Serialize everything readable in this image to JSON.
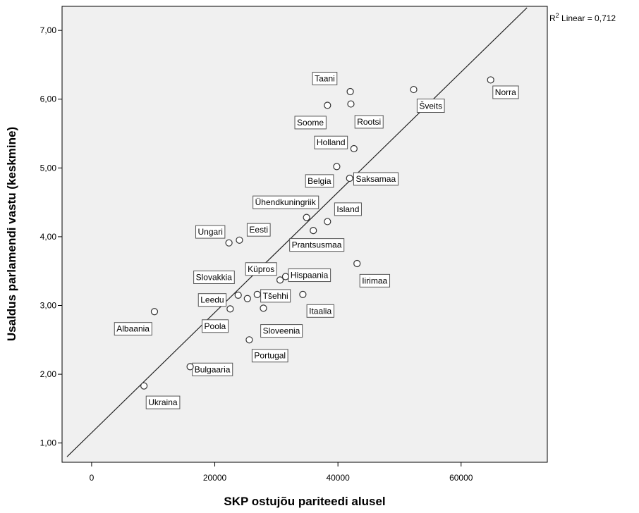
{
  "chart_data": {
    "type": "scatter",
    "xlabel": "SKP ostujõu pariteedi alusel",
    "ylabel": "Usaldus parlamendi vastu (keskmine)",
    "xlim": [
      -4800,
      74000
    ],
    "ylim": [
      0.72,
      7.35
    ],
    "xticks": [
      0,
      20000,
      40000,
      60000
    ],
    "xtick_labels": [
      "0",
      "20000",
      "40000",
      "60000"
    ],
    "yticks": [
      1,
      2,
      3,
      4,
      5,
      6,
      7
    ],
    "ytick_labels": [
      "1,00",
      "2,00",
      "3,00",
      "4,00",
      "5,00",
      "6,00",
      "7,00"
    ],
    "grid": false,
    "fit_line": {
      "label_prefix": "R",
      "label_sup": "2",
      "label_rest": " Linear = 0,712",
      "points": [
        [
          -4000,
          0.8
        ],
        [
          70700,
          7.33
        ]
      ]
    },
    "points": [
      {
        "name": "Norra",
        "x": 64800,
        "y": 6.28,
        "lx": 65500,
        "ly": 6.1,
        "anchor": "start"
      },
      {
        "name": "Šveits",
        "x": 52300,
        "y": 6.14,
        "lx": 53200,
        "ly": 5.9,
        "anchor": "start"
      },
      {
        "name": "Taani",
        "x": 42000,
        "y": 6.11,
        "lx": 39500,
        "ly": 6.3,
        "anchor": "end"
      },
      {
        "name": "Rootsi",
        "x": 42100,
        "y": 5.93,
        "lx": 43100,
        "ly": 5.67,
        "anchor": "start"
      },
      {
        "name": "Soome",
        "x": 38300,
        "y": 5.91,
        "lx": 37700,
        "ly": 5.66,
        "anchor": "end"
      },
      {
        "name": "Holland",
        "x": 42600,
        "y": 5.28,
        "lx": 41200,
        "ly": 5.37,
        "anchor": "end"
      },
      {
        "name": "Belgia",
        "x": 39800,
        "y": 5.02,
        "lx": 38900,
        "ly": 4.81,
        "anchor": "end"
      },
      {
        "name": "Saksamaa",
        "x": 41900,
        "y": 4.85,
        "lx": 42900,
        "ly": 4.84,
        "anchor": "start"
      },
      {
        "name": "Island",
        "x": 38300,
        "y": 4.22,
        "lx": 39800,
        "ly": 4.4,
        "anchor": "start"
      },
      {
        "name": "Ühendkuningriik",
        "x": 34900,
        "y": 4.28,
        "lx": 36400,
        "ly": 4.5,
        "anchor": "end"
      },
      {
        "name": "Prantsusmaa",
        "x": 36000,
        "y": 4.09,
        "lx": 40600,
        "ly": 3.88,
        "anchor": "end"
      },
      {
        "name": "Eesti",
        "x": 24000,
        "y": 3.95,
        "lx": 25600,
        "ly": 4.1,
        "anchor": "start"
      },
      {
        "name": "Ungari",
        "x": 22300,
        "y": 3.91,
        "lx": 21300,
        "ly": 4.07,
        "anchor": "end"
      },
      {
        "name": "Iirimaa",
        "x": 43100,
        "y": 3.61,
        "lx": 43900,
        "ly": 3.36,
        "anchor": "start"
      },
      {
        "name": "Hispaania",
        "x": 31500,
        "y": 3.42,
        "lx": 32300,
        "ly": 3.44,
        "anchor": "start"
      },
      {
        "name": "Küpros",
        "x": 30600,
        "y": 3.37,
        "lx": 29700,
        "ly": 3.53,
        "anchor": "end"
      },
      {
        "name": "Slovakkia",
        "x": 23800,
        "y": 3.15,
        "lx": 22800,
        "ly": 3.41,
        "anchor": "end"
      },
      {
        "name": "Tšehhi",
        "x": 26900,
        "y": 3.16,
        "lx": 27800,
        "ly": 3.14,
        "anchor": "start"
      },
      {
        "name": "Itaalia",
        "x": 34300,
        "y": 3.16,
        "lx": 35300,
        "ly": 2.92,
        "anchor": "start"
      },
      {
        "name": "Leedu",
        "x": 25300,
        "y": 3.1,
        "lx": 21500,
        "ly": 3.08,
        "anchor": "end"
      },
      {
        "name": "Sloveenia",
        "x": 27900,
        "y": 2.96,
        "lx": 27800,
        "ly": 2.63,
        "anchor": "start"
      },
      {
        "name": "Poola",
        "x": 22500,
        "y": 2.95,
        "lx": 21800,
        "ly": 2.7,
        "anchor": "end"
      },
      {
        "name": "Albaania",
        "x": 10200,
        "y": 2.91,
        "lx": 9400,
        "ly": 2.66,
        "anchor": "end"
      },
      {
        "name": "Portugal",
        "x": 25600,
        "y": 2.5,
        "lx": 26400,
        "ly": 2.27,
        "anchor": "start"
      },
      {
        "name": "Bulgaaria",
        "x": 16000,
        "y": 2.11,
        "lx": 16700,
        "ly": 2.07,
        "anchor": "start"
      },
      {
        "name": "Ukraina",
        "x": 8500,
        "y": 1.83,
        "lx": 9200,
        "ly": 1.59,
        "anchor": "start"
      }
    ]
  }
}
